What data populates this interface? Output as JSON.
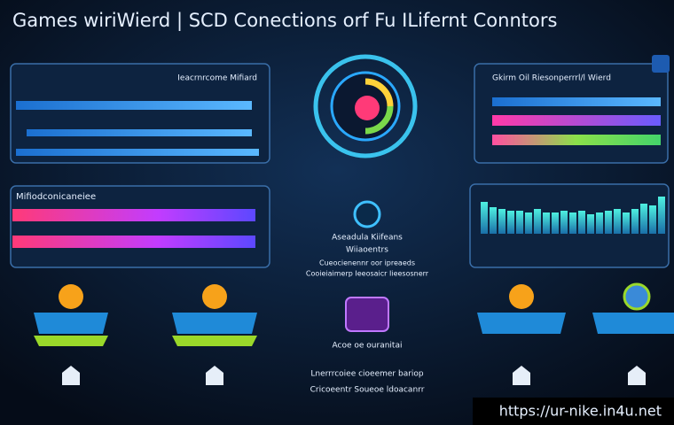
{
  "header": {
    "title": "Games wiriWierd | SCD Conections orf Fu ILifernt Conntors"
  },
  "panels": [
    {
      "label": "Ieacrnrcome Mifiard"
    },
    {
      "label": "Gkirm Oil Riesonperrrl/l Wierd"
    },
    {
      "label": "Mifiodconicaneiee"
    }
  ],
  "center": {
    "heading": "Aseadula Kiifeans",
    "subheading": "Wiiaoentrs",
    "lines": [
      "Cueocienennr oor ipreaeds",
      "Cooieiaimerp Ieeosaicr Iieesosnerr"
    ],
    "bottom_heading": "Acoe oe ouranitai",
    "bottom_lines": [
      "Lnerrrcoiee cioeemer bariop",
      "Cricoeentr Soueoe ldoacanrr"
    ]
  },
  "watermark": "https://ur-nike.in4u.net"
}
